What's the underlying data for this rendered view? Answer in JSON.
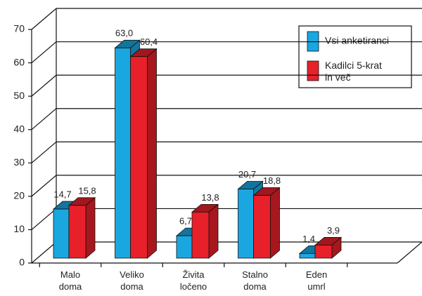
{
  "chart_data": {
    "type": "bar3d",
    "categories": [
      "Malo doma",
      "Veliko doma",
      "Živita ločeno",
      "Stalno doma",
      "Eden umrl"
    ],
    "series": [
      {
        "name": "Vsi anketiranci",
        "color": "#1aa7e0",
        "values": [
          14.7,
          63.0,
          6.7,
          20.7,
          1.4
        ],
        "value_labels": [
          "14,7",
          "63,0",
          "6,7",
          "20,7",
          "1,4"
        ]
      },
      {
        "name": "Kadilci 5-krat in več",
        "color": "#e8202a",
        "values": [
          15.8,
          60.4,
          13.8,
          18.8,
          3.9
        ],
        "value_labels": [
          "15,8",
          "60,4",
          "13,8",
          "18,8",
          "3,9"
        ]
      }
    ],
    "ylim": [
      0,
      70
    ],
    "yticks": [
      0,
      10,
      20,
      30,
      40,
      50,
      60,
      70
    ],
    "grid": true,
    "legend": "upper right"
  }
}
